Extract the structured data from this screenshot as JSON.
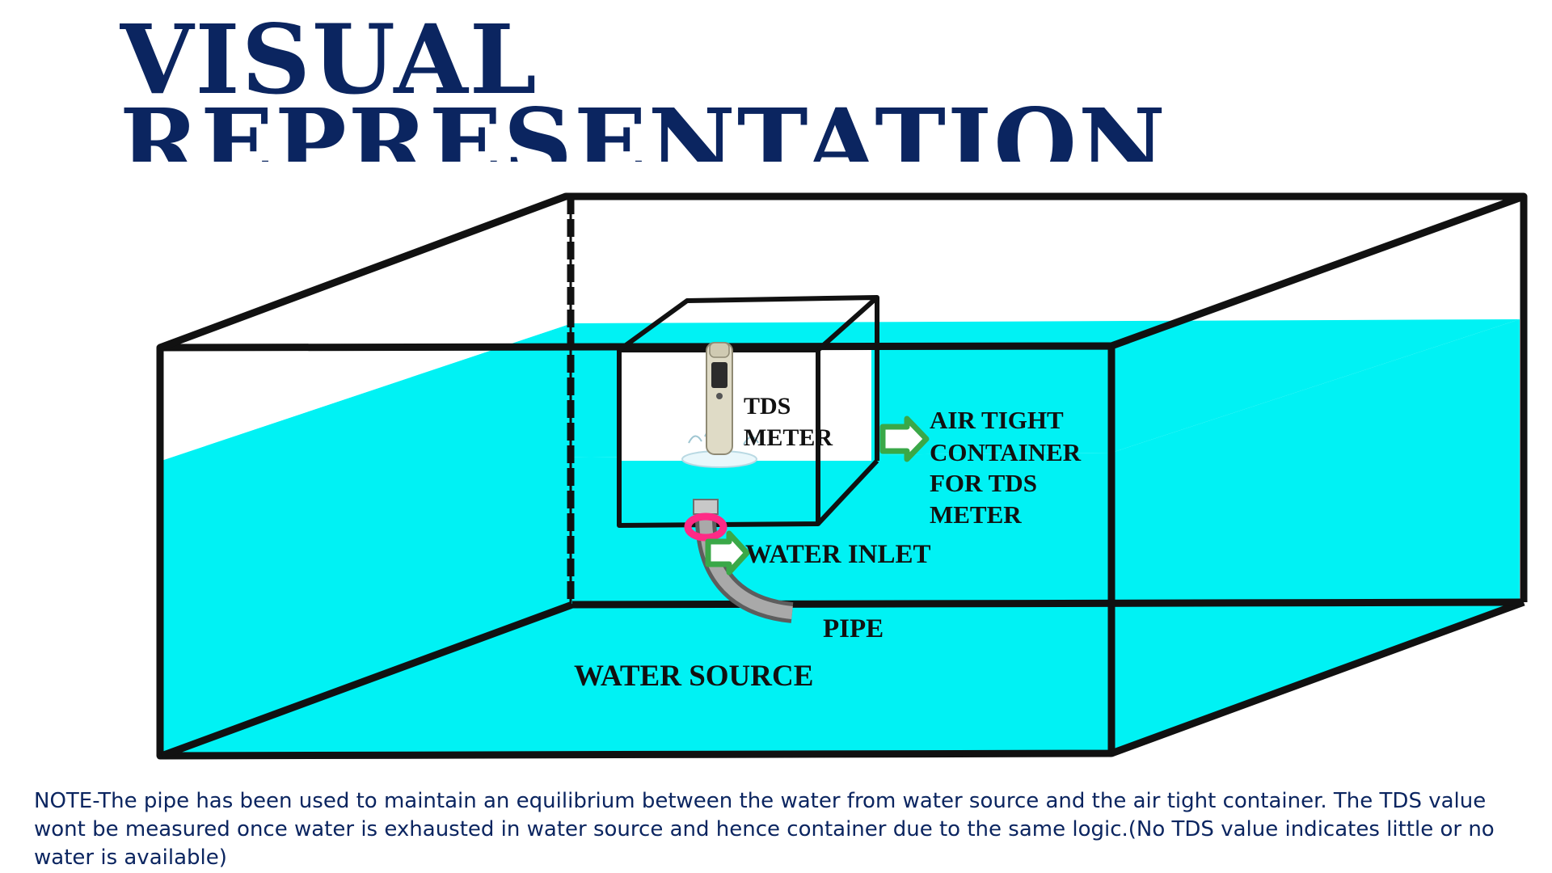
{
  "title": {
    "line1": "VISUAL",
    "line2": "REPRESENTATION"
  },
  "labels": {
    "tds_meter": [
      "TDS",
      "METER"
    ],
    "air_tight_container": [
      "AIR TIGHT",
      "CONTAINER",
      "FOR TDS",
      "METER"
    ],
    "water_inlet": "WATER INLET",
    "pipe": "PIPE",
    "water_source": "WATER SOURCE"
  },
  "note": "NOTE-The pipe has been used to maintain an equilibrium between the water from water source and the air tight container. The TDS value wont be measured once water is exhausted in water source and hence container due to the same logic.(No TDS value indicates little or no water is available)",
  "colors": {
    "water": "#00f2f4",
    "title": "#0b2560",
    "arrow": "#3aa848",
    "pipe_ring": "#ff2a86",
    "outline": "#111111"
  },
  "icons": [
    "tds-meter-icon",
    "pipe-icon",
    "arrow-right-icon"
  ]
}
